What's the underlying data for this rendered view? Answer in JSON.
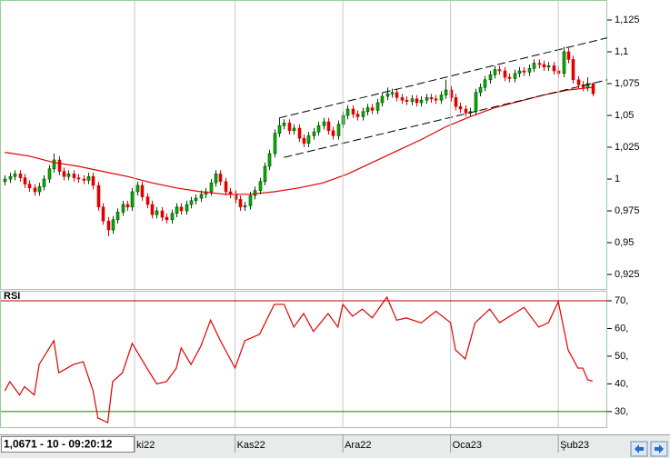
{
  "status": "1,0671 - 10 - 09:20:12",
  "chart_data": [
    {
      "type": "candlestick",
      "xlim": [
        -1,
        123
      ],
      "ylim": [
        0.9136,
        1.1407
      ],
      "yticks": [
        {
          "value": 0.925,
          "label": "0,925"
        },
        {
          "value": 0.95,
          "label": "0,95"
        },
        {
          "value": 0.975,
          "label": "0,975"
        },
        1,
        {
          "value": 1.025,
          "label": "1,025"
        },
        {
          "value": 1.05,
          "label": "1,05"
        },
        {
          "value": 1.075,
          "label": "1,075"
        },
        {
          "value": 1.1,
          "label": "1,1"
        },
        {
          "value": 1.125,
          "label": "1,125"
        }
      ],
      "up_color": "#00b400",
      "down_color": "#e00000",
      "open": [
        0.998,
        1.0,
        1.002,
        1.004,
        1.001,
        0.996,
        0.993,
        0.99,
        0.994,
        1.0,
        1.008,
        1.015,
        1.006,
        1.002,
        1.004,
        1.001,
        1.0,
        0.999,
        1.002,
        0.995,
        0.978,
        0.967,
        0.96,
        0.968,
        0.974,
        0.98,
        0.978,
        0.99,
        0.995,
        0.986,
        0.98,
        0.972,
        0.975,
        0.97,
        0.968,
        0.973,
        0.978,
        0.975,
        0.98,
        0.983,
        0.985,
        0.988,
        0.99,
        0.997,
        1.004,
        0.998,
        0.99,
        0.988,
        0.984,
        0.978,
        0.979,
        0.987,
        0.991,
        0.998,
        1.01,
        1.02,
        1.036,
        1.042,
        1.044,
        1.038,
        1.04,
        1.032,
        1.028,
        1.034,
        1.037,
        1.042,
        1.045,
        1.038,
        1.034,
        1.043,
        1.05,
        1.055,
        1.051,
        1.049,
        1.053,
        1.056,
        1.054,
        1.06,
        1.065,
        1.067,
        1.068,
        1.064,
        1.062,
        1.061,
        1.063,
        1.06,
        1.062,
        1.064,
        1.063,
        1.062,
        1.066,
        1.07,
        1.064,
        1.057,
        1.055,
        1.052,
        1.053,
        1.068,
        1.072,
        1.078,
        1.082,
        1.086,
        1.085,
        1.08,
        1.079,
        1.083,
        1.085,
        1.084,
        1.087,
        1.091,
        1.09,
        1.088,
        1.089,
        1.085,
        1.083,
        1.1,
        1.094,
        1.078,
        1.074,
        1.072,
        1.075
      ],
      "high": [
        1.003,
        1.005,
        1.007,
        1.007,
        1.004,
        0.999,
        0.996,
        0.997,
        1.003,
        1.011,
        1.02,
        1.018,
        1.009,
        1.007,
        1.007,
        1.004,
        1.003,
        1.005,
        1.005,
        0.998,
        0.981,
        0.97,
        0.971,
        0.977,
        0.983,
        0.983,
        0.993,
        0.998,
        0.998,
        0.989,
        0.983,
        0.978,
        0.978,
        0.973,
        0.976,
        0.981,
        0.981,
        0.983,
        0.986,
        0.988,
        0.991,
        0.993,
        1.0,
        1.007,
        1.007,
        1.001,
        0.993,
        0.991,
        0.987,
        0.982,
        0.99,
        0.994,
        1.001,
        1.013,
        1.023,
        1.039,
        1.048,
        1.047,
        1.047,
        1.043,
        1.043,
        1.035,
        1.037,
        1.04,
        1.045,
        1.048,
        1.048,
        1.041,
        1.046,
        1.053,
        1.058,
        1.058,
        1.054,
        1.056,
        1.059,
        1.059,
        1.063,
        1.068,
        1.072,
        1.071,
        1.071,
        1.067,
        1.065,
        1.066,
        1.066,
        1.065,
        1.067,
        1.067,
        1.066,
        1.069,
        1.078,
        1.073,
        1.067,
        1.06,
        1.058,
        1.056,
        1.071,
        1.075,
        1.081,
        1.085,
        1.089,
        1.089,
        1.088,
        1.083,
        1.086,
        1.088,
        1.088,
        1.09,
        1.094,
        1.094,
        1.093,
        1.092,
        1.092,
        1.088,
        1.104,
        1.103,
        1.097,
        1.081,
        1.077,
        1.08,
        1.076
      ],
      "low": [
        0.995,
        0.997,
        0.999,
        0.998,
        0.993,
        0.99,
        0.987,
        0.987,
        0.991,
        0.997,
        1.005,
        1.003,
        0.999,
        0.999,
        0.998,
        0.997,
        0.996,
        0.996,
        0.992,
        0.975,
        0.964,
        0.955,
        0.957,
        0.965,
        0.971,
        0.975,
        0.975,
        0.987,
        0.983,
        0.977,
        0.969,
        0.969,
        0.967,
        0.965,
        0.965,
        0.97,
        0.972,
        0.972,
        0.977,
        0.98,
        0.982,
        0.985,
        0.987,
        0.994,
        0.995,
        0.987,
        0.985,
        0.981,
        0.975,
        0.975,
        0.976,
        0.984,
        0.988,
        0.995,
        1.007,
        1.017,
        1.033,
        1.039,
        1.035,
        1.035,
        1.029,
        1.025,
        1.025,
        1.031,
        1.034,
        1.039,
        1.035,
        1.031,
        1.031,
        1.04,
        1.047,
        1.048,
        1.046,
        1.046,
        1.05,
        1.051,
        1.051,
        1.057,
        1.062,
        1.064,
        1.061,
        1.059,
        1.058,
        1.058,
        1.057,
        1.057,
        1.059,
        1.06,
        1.059,
        1.059,
        1.063,
        1.061,
        1.054,
        1.052,
        1.049,
        1.049,
        1.05,
        1.065,
        1.069,
        1.075,
        1.079,
        1.082,
        1.077,
        1.076,
        1.076,
        1.08,
        1.081,
        1.081,
        1.084,
        1.087,
        1.085,
        1.085,
        1.082,
        1.08,
        1.08,
        1.091,
        1.075,
        1.071,
        1.069,
        1.069,
        1.065
      ],
      "close": [
        1.0,
        1.002,
        1.004,
        1.001,
        0.996,
        0.993,
        0.99,
        0.994,
        1.0,
        1.008,
        1.015,
        1.006,
        1.002,
        1.004,
        1.001,
        1.0,
        0.999,
        1.002,
        0.995,
        0.978,
        0.967,
        0.96,
        0.968,
        0.974,
        0.98,
        0.978,
        0.99,
        0.995,
        0.986,
        0.98,
        0.972,
        0.975,
        0.97,
        0.968,
        0.973,
        0.978,
        0.975,
        0.98,
        0.983,
        0.985,
        0.988,
        0.99,
        0.997,
        1.004,
        0.998,
        0.99,
        0.988,
        0.984,
        0.978,
        0.979,
        0.987,
        0.991,
        0.998,
        1.01,
        1.02,
        1.036,
        1.042,
        1.044,
        1.038,
        1.04,
        1.032,
        1.028,
        1.034,
        1.037,
        1.042,
        1.045,
        1.038,
        1.034,
        1.043,
        1.05,
        1.055,
        1.051,
        1.049,
        1.053,
        1.056,
        1.054,
        1.06,
        1.065,
        1.067,
        1.068,
        1.064,
        1.062,
        1.061,
        1.063,
        1.06,
        1.062,
        1.064,
        1.063,
        1.062,
        1.066,
        1.07,
        1.064,
        1.057,
        1.055,
        1.052,
        1.053,
        1.068,
        1.072,
        1.078,
        1.082,
        1.086,
        1.085,
        1.08,
        1.079,
        1.083,
        1.085,
        1.084,
        1.087,
        1.091,
        1.09,
        1.088,
        1.089,
        1.085,
        1.083,
        1.1,
        1.094,
        1.078,
        1.074,
        1.072,
        1.075,
        1.0671
      ],
      "ma": {
        "color": "#e00000",
        "x": [
          0,
          5,
          10,
          15,
          20,
          25,
          30,
          35,
          40,
          45,
          50,
          55,
          60,
          65,
          70,
          75,
          80,
          85,
          90,
          95,
          100,
          105,
          110,
          115,
          120
        ],
        "values": [
          1.021,
          1.018,
          1.013,
          1.01,
          1.006,
          1.002,
          0.997,
          0.993,
          0.99,
          0.988,
          0.988,
          0.99,
          0.993,
          0.997,
          1.004,
          1.013,
          1.022,
          1.031,
          1.041,
          1.049,
          1.056,
          1.061,
          1.066,
          1.07,
          1.072
        ]
      },
      "trendlines": [
        {
          "color": "#000000",
          "x": [
            56,
            123
          ],
          "values": [
            1.048,
            1.111
          ]
        },
        {
          "color": "#000000",
          "x": [
            57,
            123
          ],
          "values": [
            1.017,
            1.078
          ]
        }
      ]
    },
    {
      "type": "line",
      "title": "RSI",
      "xlim": [
        -1,
        123
      ],
      "ylim": [
        24.4,
        73.6
      ],
      "yticks": [
        {
          "value": 30,
          "label": "30,"
        },
        {
          "value": 40,
          "label": "40,"
        },
        {
          "value": 50,
          "label": "50,"
        },
        {
          "value": 60,
          "label": "60,"
        },
        {
          "value": 70,
          "label": "70,"
        }
      ],
      "xticks": [
        {
          "value": 26.5,
          "label": "ki22"
        },
        {
          "value": 47,
          "label": "Kas22"
        },
        {
          "value": 69,
          "label": "Ara22"
        },
        {
          "value": 91,
          "label": "Oca23"
        },
        {
          "value": 113,
          "label": "Şub23"
        }
      ],
      "levels": [
        {
          "value": 70,
          "color": "#b00000"
        },
        {
          "value": 30,
          "color": "#008000"
        }
      ],
      "color": "#e00000",
      "x": [
        0,
        1,
        3,
        4,
        6,
        7,
        10,
        11,
        14,
        16,
        18,
        19,
        21,
        22,
        24,
        26,
        29,
        31,
        33,
        35,
        36,
        38,
        40,
        42,
        44,
        47,
        49,
        52,
        55,
        57,
        59,
        61,
        63,
        66,
        68,
        69,
        71,
        73,
        75,
        78,
        80,
        82,
        85,
        88,
        91,
        92,
        94,
        96,
        99,
        101,
        104,
        106,
        109,
        111,
        113,
        115,
        117,
        118,
        119,
        120
      ],
      "values": [
        37.5,
        40.8,
        36,
        39,
        36,
        47,
        55.6,
        44,
        47,
        48,
        37.5,
        27.7,
        26,
        40.8,
        44,
        54.6,
        45.7,
        40,
        40.8,
        45.7,
        53,
        47,
        53.6,
        63,
        55.6,
        45.7,
        55.6,
        57.9,
        68.7,
        68.7,
        60.5,
        65.4,
        58.9,
        65.4,
        60.5,
        68.7,
        64.4,
        67,
        63.8,
        71.3,
        63,
        63.8,
        62,
        66.2,
        62.1,
        52.3,
        49,
        62,
        67,
        62.1,
        65.4,
        67.6,
        60.5,
        62.1,
        69.7,
        52.3,
        45.7,
        45.7,
        41.5,
        41
      ]
    }
  ]
}
